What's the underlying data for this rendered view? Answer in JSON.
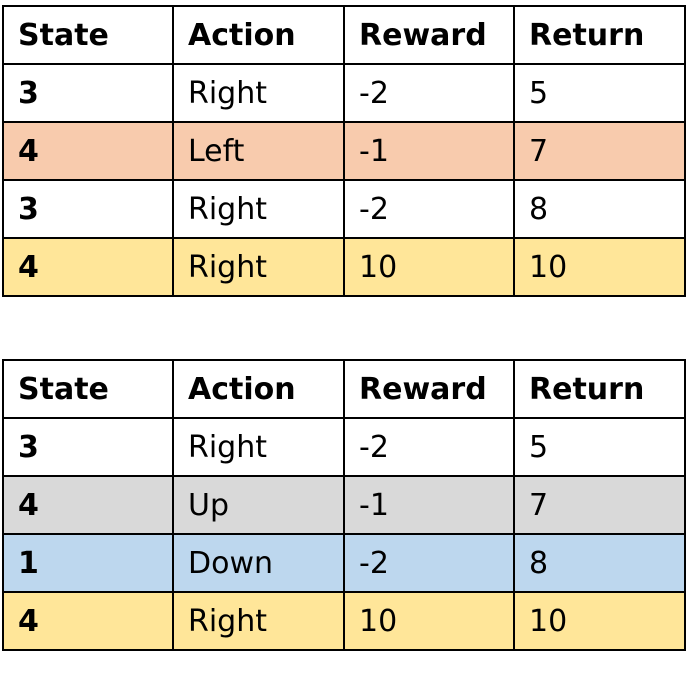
{
  "tables": [
    {
      "headers": [
        "State",
        "Action",
        "Reward",
        "Return"
      ],
      "rows": [
        {
          "state": "3",
          "action": "Right",
          "reward": "-2",
          "return": "5",
          "fill": "#ffffff"
        },
        {
          "state": "4",
          "action": "Left",
          "reward": "-1",
          "return": "7",
          "fill": "#f8cbad"
        },
        {
          "state": "3",
          "action": "Right",
          "reward": "-2",
          "return": "8",
          "fill": "#ffffff"
        },
        {
          "state": "4",
          "action": "Right",
          "reward": "10",
          "return": "10",
          "fill": "#ffe699"
        }
      ]
    },
    {
      "headers": [
        "State",
        "Action",
        "Reward",
        "Return"
      ],
      "rows": [
        {
          "state": "3",
          "action": "Right",
          "reward": "-2",
          "return": "5",
          "fill": "#ffffff"
        },
        {
          "state": "4",
          "action": "Up",
          "reward": "-1",
          "return": "7",
          "fill": "#d9d9d9"
        },
        {
          "state": "1",
          "action": "Down",
          "reward": "-2",
          "return": "8",
          "fill": "#bdd7ee"
        },
        {
          "state": "4",
          "action": "Right",
          "reward": "10",
          "return": "10",
          "fill": "#ffe699"
        }
      ]
    }
  ]
}
